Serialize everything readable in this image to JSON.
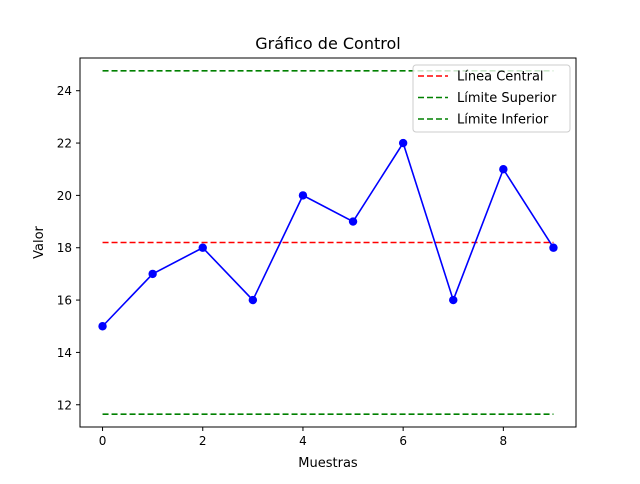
{
  "chart_data": {
    "type": "line",
    "title": "Gráfico de Control",
    "xlabel": "Muestras",
    "ylabel": "Valor",
    "xlim": [
      -0.45,
      9.45
    ],
    "ylim": [
      11.15,
      25.25
    ],
    "x_ticks": [
      0,
      2,
      4,
      6,
      8
    ],
    "y_ticks": [
      12,
      14,
      16,
      18,
      20,
      22,
      24
    ],
    "grid": false,
    "legend_position": "top-right",
    "x": [
      0,
      1,
      2,
      3,
      4,
      5,
      6,
      7,
      8,
      9
    ],
    "series": [
      {
        "values": [
          15,
          17,
          18,
          16,
          20,
          19,
          22,
          16,
          21,
          18
        ],
        "color": "#0000ff",
        "style": "solid",
        "marker": "circle"
      }
    ],
    "reference_lines": [
      {
        "name": "Línea Central",
        "value": 18.2,
        "color": "#ff0000",
        "style": "dashed"
      },
      {
        "name": "Límite Superior",
        "value": 24.76,
        "color": "#008000",
        "style": "dashed"
      },
      {
        "name": "Límite Inferior",
        "value": 11.64,
        "color": "#008000",
        "style": "dashed"
      }
    ]
  }
}
